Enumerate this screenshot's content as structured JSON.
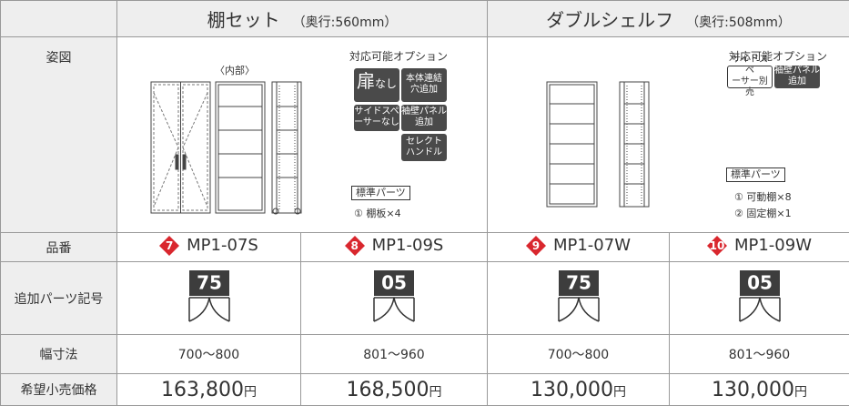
{
  "header": {
    "groups": [
      {
        "name": "棚セット",
        "depth": "（奥行:560mm）"
      },
      {
        "name": "ダブルシェルフ",
        "depth": "（奥行:508mm）"
      }
    ]
  },
  "row_labels": [
    "姿図",
    "品番",
    "追加パーツ記号",
    "幅寸法",
    "希望小売価格"
  ],
  "figures": [
    {
      "caption": "〈内部〉",
      "options_title": "対応可能オプション",
      "options": [
        [
          "扉",
          "なし"
        ],
        [
          "本体連結",
          "穴追加"
        ],
        [
          "サイドスペ",
          "ーサーなし"
        ],
        [
          "袖壁パネル",
          "追加"
        ],
        [
          "セレクト",
          "ハンドル"
        ]
      ],
      "standard_title": "標準パーツ",
      "standard_parts": [
        "① 棚板×4"
      ]
    },
    {
      "options_title": "対応可能オプション",
      "options": [
        [
          "サイドスペ",
          "ーサー別売"
        ],
        [
          "袖壁パネル",
          "追加"
        ]
      ],
      "standard_title": "標準パーツ",
      "standard_parts": [
        "① 可動棚×8",
        "② 固定棚×1"
      ]
    }
  ],
  "products": [
    {
      "number": "7",
      "code": "MP1-07S",
      "symbol": "75",
      "width": "700～800",
      "price": "163,800",
      "price_unit": "円"
    },
    {
      "number": "8",
      "code": "MP1-09S",
      "symbol": "05",
      "width": "801～960",
      "price": "168,500",
      "price_unit": "円"
    },
    {
      "number": "9",
      "code": "MP1-07W",
      "symbol": "75",
      "width": "700～800",
      "price": "130,000",
      "price_unit": "円"
    },
    {
      "number": "10",
      "code": "MP1-09W",
      "symbol": "05",
      "width": "801～960",
      "price": "130,000",
      "price_unit": "円"
    }
  ]
}
